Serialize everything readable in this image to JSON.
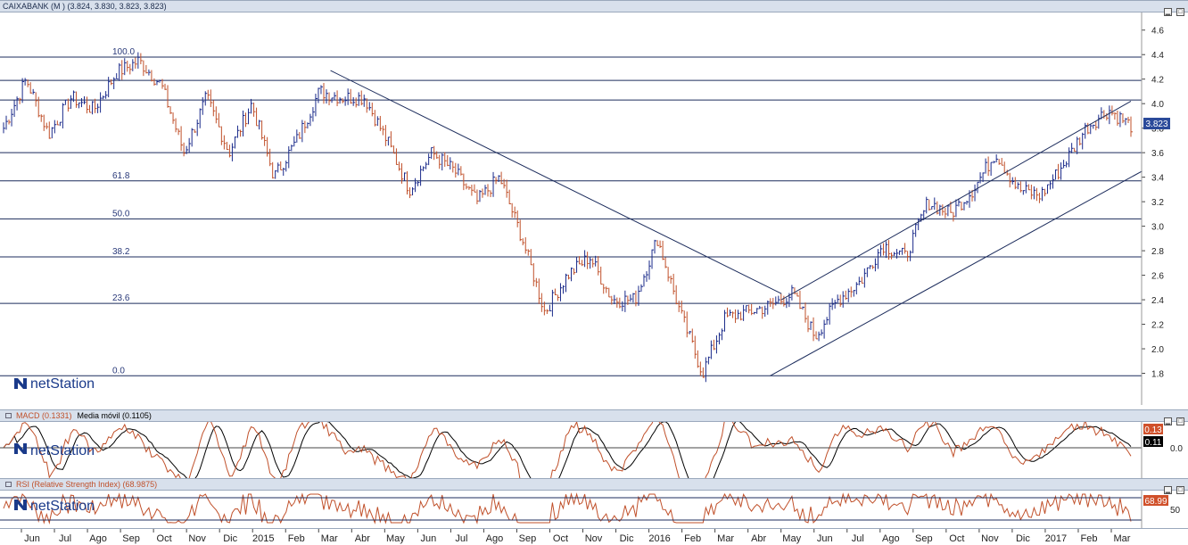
{
  "price_panel": {
    "title": "CAIXABANK (M )",
    "ohlc": "(3.824, 3.830, 3.823, 3.823)",
    "current_price_label": "3.823",
    "logo_text": "netStation"
  },
  "macd_panel": {
    "title": "MACD (0.1331)",
    "signal_title": "Media móvil (0.1105)",
    "macd_badge": "0.13",
    "signal_badge": "0.11",
    "zero_label": "0.0",
    "logo_text": "netStation"
  },
  "rsi_panel": {
    "title": "RSI (Relative Strength Index) (68.9875)",
    "rsi_badge": "68.99",
    "mid_label": "50",
    "logo_text": "netStation"
  },
  "colors": {
    "up": "#1a2a8a",
    "down": "#c0502a",
    "macd": "#c0502a",
    "signal": "#000000",
    "lines": "#1c2c5c",
    "badge_price": "#2b4a9a",
    "badge_macd": "#d0502a",
    "badge_signal": "#000000"
  },
  "chart_data": {
    "type": "line",
    "x_tick_labels": [
      "Jun",
      "Jul",
      "Ago",
      "Sep",
      "Oct",
      "Nov",
      "Dic",
      "2015",
      "Feb",
      "Mar",
      "Abr",
      "May",
      "Jun",
      "Jul",
      "Ago",
      "Sep",
      "Oct",
      "Nov",
      "Dic",
      "2016",
      "Feb",
      "Mar",
      "Abr",
      "May",
      "Jun",
      "Jul",
      "Ago",
      "Sep",
      "Oct",
      "Nov",
      "Dic",
      "2017",
      "Feb",
      "Mar"
    ],
    "y_ticks": [
      1.8,
      2.0,
      2.2,
      2.4,
      2.6,
      2.8,
      3.0,
      3.2,
      3.4,
      3.6,
      3.8,
      4.0,
      4.2,
      4.4,
      4.6
    ],
    "ylim": [
      1.6,
      4.7
    ],
    "fibonacci_levels": [
      {
        "label": "100.0",
        "price": 4.38
      },
      {
        "label": "61.8",
        "price": 3.37
      },
      {
        "label": "50.0",
        "price": 3.06
      },
      {
        "label": "38.2",
        "price": 2.75
      },
      {
        "label": "23.6",
        "price": 2.37
      },
      {
        "label": "0.0",
        "price": 1.78
      }
    ],
    "horizontal_levels": [
      4.19,
      4.03,
      3.6
    ],
    "price_series": {
      "name": "CAIXABANK",
      "x": [
        0,
        1,
        2,
        3,
        4,
        5,
        6,
        7,
        8,
        9,
        10,
        11,
        12,
        13,
        14,
        15,
        16,
        17,
        18,
        19,
        20,
        21,
        22,
        23,
        24,
        25,
        26,
        27,
        28,
        29,
        30,
        31,
        32,
        33,
        34
      ],
      "values": [
        3.8,
        4.2,
        3.75,
        4.05,
        3.95,
        4.25,
        4.35,
        4.15,
        3.6,
        4.05,
        3.6,
        4.0,
        3.4,
        3.7,
        4.1,
        4.05,
        4.05,
        3.7,
        3.3,
        3.6,
        3.45,
        3.2,
        3.4,
        2.9,
        2.3,
        2.6,
        2.75,
        2.4,
        2.4,
        2.9,
        2.3,
        1.8,
        2.25,
        2.3,
        2.35
      ]
    },
    "price_series_tail": {
      "x": [
        35,
        36,
        37,
        38,
        39,
        40,
        41,
        42,
        43,
        44,
        45,
        46,
        47,
        48,
        49,
        50
      ],
      "values": [
        2.45,
        2.1,
        2.4,
        2.55,
        2.85,
        2.75,
        3.2,
        3.1,
        3.3,
        3.6,
        3.3,
        3.25,
        3.5,
        3.8,
        3.95,
        3.82
      ]
    },
    "macd": {
      "last": 0.1331,
      "signal_last": 0.1105
    },
    "rsi": {
      "last": 68.9875
    }
  }
}
